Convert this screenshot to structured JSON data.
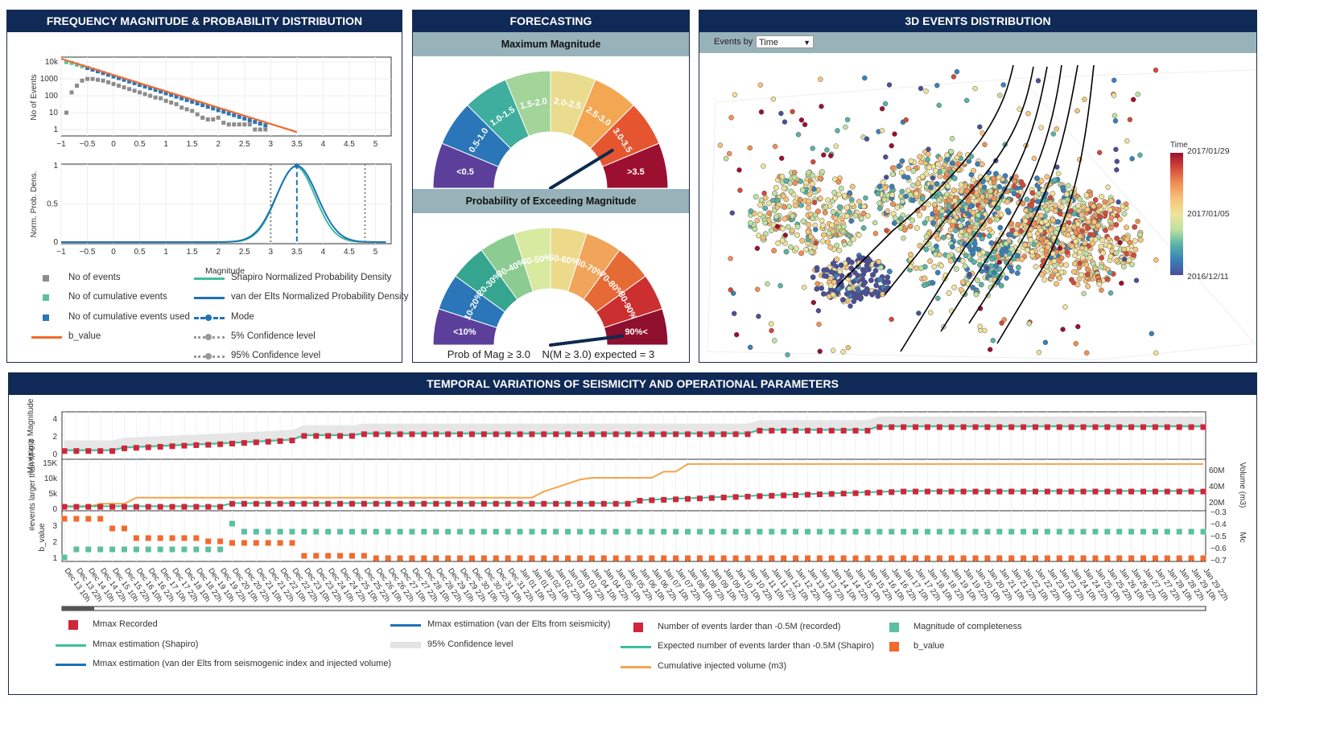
{
  "freq": {
    "title": "FREQUENCY MAGNITUDE & PROBABILITY DISTRIBUTION",
    "y1_label": "No of Events",
    "y2_label": "Norm. Prob. Dens.",
    "y1_ticks": [
      "10k",
      "1000",
      "100",
      "10",
      "1"
    ],
    "y2_ticks": [
      "1",
      "0.5",
      "0"
    ],
    "x_ticks": [
      "−1",
      "−0.5",
      "0",
      "0.5",
      "1",
      "1.5",
      "2",
      "2.5",
      "3",
      "3.5",
      "4",
      "4.5",
      "5"
    ],
    "legend_header": "Magnitude",
    "legend": [
      {
        "label": "No of events",
        "color": "#8c8c8c",
        "kind": "square"
      },
      {
        "label": "No of cumulative events",
        "color": "#5bc0a0",
        "kind": "square"
      },
      {
        "label": "No of cumulative events used",
        "color": "#2a76b8",
        "kind": "square"
      },
      {
        "label": "b_value",
        "color": "#f26a2e",
        "kind": "line"
      },
      {
        "label": "Shapiro Normalized Probability Density",
        "color": "#3dbf9b",
        "kind": "line"
      },
      {
        "label": "van der Elts Normalized Probability Density",
        "color": "#1f72b5",
        "kind": "line"
      },
      {
        "label": "Mode",
        "color": "#1f72b5",
        "kind": "dashdot"
      },
      {
        "label": "5% Confidence level",
        "color": "#999999",
        "kind": "dotted"
      },
      {
        "label": "95% Confidence level",
        "color": "#999999",
        "kind": "dotted"
      }
    ]
  },
  "forecast": {
    "title": "FORECASTING",
    "max_title": "Maximum Magnitude",
    "prob_title": "Probability of Exceeding Magnitude",
    "gauge1_labels": [
      "<0.5",
      "0.5-1.0",
      "1.0-1.5",
      "1.5-2.0",
      "2.0-2.5",
      "2.5-3.0",
      "3.0-3.5",
      ">3.5"
    ],
    "gauge2_labels": [
      "<10%",
      "10-20%",
      "20-30%",
      "30-40%",
      "40-50%",
      "50-60%",
      "60-70%",
      "70-80%",
      "80-90%",
      "90%<"
    ],
    "gauge_value_1": 3.3,
    "gauge_value_2_fraction": 0.96,
    "footer": "Prob of Mag ≥ 3.0    N(M ≥ 3.0) expected = 3"
  },
  "events3d": {
    "title": "3D EVENTS DISTRIBUTION",
    "events_by_label": "Events by",
    "select_value": "Time",
    "colorbar_title": "Time",
    "colorbar_ticks": [
      "2017/01/29",
      "2017/01/05",
      "2016/12/11"
    ]
  },
  "temporal": {
    "title": "TEMPORAL VARIATIONS OF SEISMICITY AND OPERATIONAL PARAMETERS",
    "p1_ylabel": "Maximum Magnitude",
    "p1_ticks": [
      "4",
      "2",
      "0"
    ],
    "p2_ylabel": "#events larger than M-0.4",
    "p2_ticks": [
      "15K",
      "10k",
      "5k",
      "0"
    ],
    "p2_yright_label": "Volume (m3)",
    "p2_right_ticks": [
      "60M",
      "40M",
      "20M"
    ],
    "p3_ylabel": "b_value",
    "p3_ticks": [
      "3",
      "2",
      "1"
    ],
    "p3_yright_label": "Mc",
    "p3_right_ticks": [
      "−0.3",
      "−0.4",
      "−0.5",
      "−0.6",
      "−0.7"
    ],
    "dates": [
      "Dec 13 10h",
      "Dec 13 22h",
      "Dec 14 10h",
      "Dec 14 22h",
      "Dec 15 10h",
      "Dec 15 22h",
      "Dec 16 10h",
      "Dec 16 22h",
      "Dec 17 10h",
      "Dec 17 22h",
      "Dec 18 10h",
      "Dec 18 22h",
      "Dec 19 10h",
      "Dec 19 22h",
      "Dec 20 10h",
      "Dec 20 22h",
      "Dec 21 10h",
      "Dec 21 22h",
      "Dec 22 10h",
      "Dec 22 22h",
      "Dec 23 10h",
      "Dec 23 22h",
      "Dec 24 10h",
      "Dec 24 22h",
      "Dec 25 10h",
      "Dec 25 22h",
      "Dec 26 10h",
      "Dec 26 22h",
      "Dec 27 10h",
      "Dec 27 22h",
      "Dec 28 10h",
      "Dec 28 22h",
      "Dec 29 10h",
      "Dec 29 22h",
      "Dec 30 10h",
      "Dec 30 22h",
      "Dec 31 10h",
      "Dec 31 22h",
      "Jan 01 10h",
      "Jan 01 22h",
      "Jan 02 10h",
      "Jan 02 22h",
      "Jan 03 10h",
      "Jan 03 22h",
      "Jan 04 10h",
      "Jan 04 22h",
      "Jan 05 10h",
      "Jan 05 22h",
      "Jan 06 10h",
      "Jan 06 22h",
      "Jan 07 10h",
      "Jan 07 22h",
      "Jan 08 10h",
      "Jan 08 22h",
      "Jan 09 10h",
      "Jan 09 22h",
      "Jan 10 10h",
      "Jan 10 22h",
      "Jan 11 10h",
      "Jan 11 22h",
      "Jan 12 10h",
      "Jan 12 22h",
      "Jan 13 10h",
      "Jan 13 22h",
      "Jan 14 10h",
      "Jan 14 22h",
      "Jan 15 10h",
      "Jan 15 22h",
      "Jan 16 10h",
      "Jan 16 22h",
      "Jan 17 10h",
      "Jan 17 22h",
      "Jan 18 10h",
      "Jan 18 22h",
      "Jan 19 10h",
      "Jan 19 22h",
      "Jan 20 10h",
      "Jan 20 22h",
      "Jan 21 10h",
      "Jan 21 22h",
      "Jan 22 10h",
      "Jan 22 22h",
      "Jan 23 10h",
      "Jan 23 22h",
      "Jan 24 10h",
      "Jan 24 22h",
      "Jan 25 10h",
      "Jan 25 22h",
      "Jan 26 10h",
      "Jan 26 22h",
      "Jan 27 10h",
      "Jan 27 22h",
      "Jan 28 10h",
      "Jan 28 22h",
      "Jan 29 10h",
      "Jan 29 22h"
    ],
    "legend": [
      {
        "label": "Mmax Recorded",
        "color": "#d0263a",
        "kind": "square"
      },
      {
        "label": "Mmax estimation (Shapiro)",
        "color": "#3dbf9b",
        "kind": "line"
      },
      {
        "label": "Mmax estimation (van der Elts from seismogenic index and injected volume)",
        "color": "#1f72b5",
        "kind": "line"
      },
      {
        "label": "Mmax estimation (van der Elts from seismicity)",
        "color": "#1f72b5",
        "kind": "line"
      },
      {
        "label": "95% Confidence level",
        "color": "#e3e3e3",
        "kind": "band"
      },
      {
        "label": "Number of events larder than -0.5M (recorded)",
        "color": "#d0263a",
        "kind": "square"
      },
      {
        "label": "Expected number of events larder than -0.5M (Shapiro)",
        "color": "#3dbf9b",
        "kind": "line"
      },
      {
        "label": "Cumulative injected volume (m3)",
        "color": "#f4a44a",
        "kind": "line"
      },
      {
        "label": "Magnitude of completeness",
        "color": "#5bc0a0",
        "kind": "square"
      },
      {
        "label": "b_value",
        "color": "#f26a2e",
        "kind": "square"
      }
    ]
  }
}
